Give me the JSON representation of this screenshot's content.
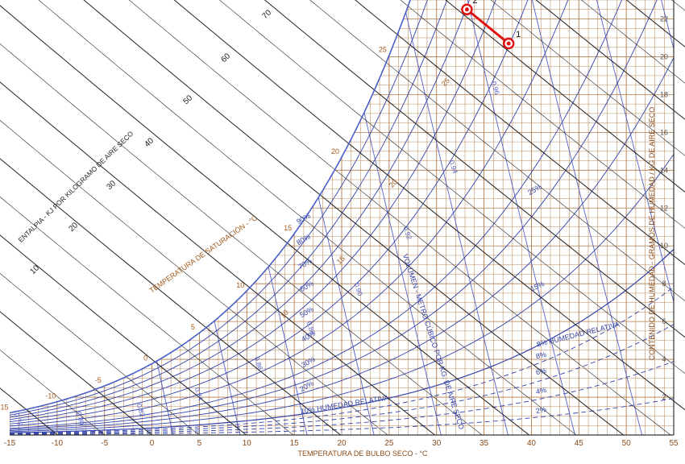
{
  "chart_data": {
    "type": "psychrometric",
    "x_axis": {
      "label": "TEMPERATURA DE BULBO SECO - °C",
      "ticks": [
        -15,
        -10,
        -5,
        0,
        5,
        10,
        15,
        20,
        25,
        30,
        35,
        40,
        45,
        50,
        55
      ],
      "range": [
        -15,
        55
      ]
    },
    "y_axis_right": {
      "label": "CONTENIDO DE HUMEDAD - GRAMOS DE HUMEDAD / KG DE AIRE SECO",
      "ticks": [
        2,
        4,
        6,
        8,
        10,
        12,
        14,
        16,
        18,
        20,
        22
      ],
      "range": [
        0,
        23
      ]
    },
    "enthalpy_scale": {
      "label": "ENTALPIA - KJ POR KILOGRAMO DE AIRE SECO",
      "ticks": [
        10,
        20,
        30,
        40,
        50,
        60,
        70
      ]
    },
    "saturation_curve": {
      "label": "TEMPERATURA DE SATURACIÓN - °C",
      "ticks": [
        -15,
        -10,
        -5,
        0,
        5,
        10,
        15,
        20,
        25
      ]
    },
    "wet_bulb_labels": [
      10,
      15,
      20,
      25
    ],
    "relative_humidity": {
      "label_bottom": "10% HUMEDAD RELATIVA",
      "label_right": "8% HUMEDAD RELATIVA",
      "curves": [
        "90%",
        "80%",
        "70%",
        "60%",
        "50%",
        "40%",
        "30%",
        "20%",
        "10%"
      ],
      "low_curves": [
        "2%",
        "4%",
        "6%",
        "8%"
      ],
      "extra_labels": [
        "25%",
        "15%"
      ]
    },
    "specific_volume": {
      "label": "VOLUMEN - METRO CÚBICO POR KG. DE AIRE SECO",
      "ticks": [
        "0.78",
        "0.80",
        "0.82",
        "0.84",
        "0.86",
        "0.88",
        "0.90",
        "0.92",
        "0.94",
        "0.96"
      ]
    },
    "process": {
      "points": [
        {
          "label": "1",
          "t": 37.6,
          "w": 20.7
        },
        {
          "label": "2",
          "t": 33.2,
          "w": 22.5
        }
      ],
      "color": "#e01010"
    },
    "grid": true,
    "colors": {
      "grid": "#b07a4a",
      "saturation": "#4a5ec8",
      "enthalpy": "#222222",
      "volume": "#5560c8",
      "rh": "#3344aa"
    }
  }
}
